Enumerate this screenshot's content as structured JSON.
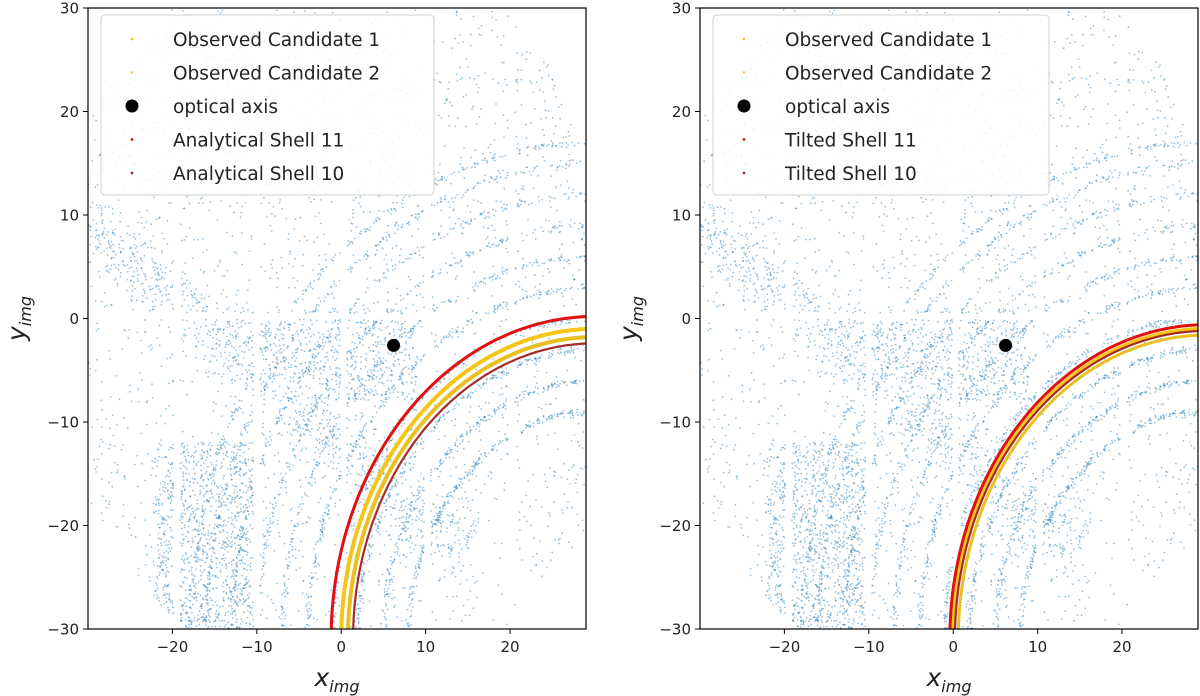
{
  "chart_data": [
    {
      "type": "scatter",
      "panel": "left",
      "xlabel": "x",
      "xlabel_sub": "img",
      "ylabel": "y",
      "ylabel_sub": "img",
      "xlim": [
        -30,
        29
      ],
      "ylim": [
        -30,
        30
      ],
      "xticks": [
        -20,
        -10,
        0,
        10,
        20
      ],
      "yticks": [
        -30,
        -20,
        -10,
        0,
        10,
        20,
        30
      ],
      "xtick_labels": [
        "−20",
        "−10",
        "0",
        "10",
        "20"
      ],
      "ytick_labels": [
        "−30",
        "−20",
        "−10",
        "0",
        "10",
        "20",
        "30"
      ],
      "legend_position": "upper-left",
      "legend": [
        {
          "label": "Observed Candidate 1",
          "color": "#f5c518",
          "marker": "small-point"
        },
        {
          "label": "Observed Candidate 2",
          "color": "#f0d060",
          "marker": "small-point"
        },
        {
          "label": "optical axis",
          "color": "#000000",
          "marker": "large-dot"
        },
        {
          "label": "Analytical Shell 11",
          "color": "#e01010",
          "marker": "small-point"
        },
        {
          "label": "Analytical Shell 10",
          "color": "#a52a2a",
          "marker": "small-point"
        }
      ],
      "optical_axis": {
        "x": 6.2,
        "y": -2.6
      },
      "series": [
        {
          "name": "Observed Candidate 1",
          "kind": "arc",
          "center": [
            30,
            -31
          ],
          "radius": 30.0,
          "color": "#f5c518",
          "width": 4
        },
        {
          "name": "Observed Candidate 2",
          "kind": "arc",
          "center": [
            30,
            -31
          ],
          "radius": 29.2,
          "color": "#e8c020",
          "width": 4
        },
        {
          "name": "Analytical Shell 11",
          "kind": "arc",
          "center": [
            30,
            -31
          ],
          "radius": 31.2,
          "color": "#e01010",
          "width": 3
        },
        {
          "name": "Analytical Shell 10",
          "kind": "arc",
          "center": [
            30,
            -31
          ],
          "radius": 28.6,
          "color": "#a52a2a",
          "width": 2.2
        }
      ]
    },
    {
      "type": "scatter",
      "panel": "right",
      "xlabel": "x",
      "xlabel_sub": "img",
      "ylabel": "y",
      "ylabel_sub": "img",
      "xlim": [
        -30,
        29
      ],
      "ylim": [
        -30,
        30
      ],
      "xticks": [
        -20,
        -10,
        0,
        10,
        20
      ],
      "yticks": [
        -30,
        -20,
        -10,
        0,
        10,
        20,
        30
      ],
      "xtick_labels": [
        "−20",
        "−10",
        "0",
        "10",
        "20"
      ],
      "ytick_labels": [
        "−30",
        "−20",
        "−10",
        "0",
        "10",
        "20",
        "30"
      ],
      "legend_position": "upper-left",
      "legend": [
        {
          "label": "Observed Candidate 1",
          "color": "#f5c518",
          "marker": "small-point"
        },
        {
          "label": "Observed Candidate 2",
          "color": "#f0d060",
          "marker": "small-point"
        },
        {
          "label": "optical axis",
          "color": "#000000",
          "marker": "large-dot"
        },
        {
          "label": "Tilted Shell 11",
          "color": "#e01010",
          "marker": "small-point"
        },
        {
          "label": "Tilted Shell 10",
          "color": "#a52a2a",
          "marker": "small-point"
        }
      ],
      "optical_axis": {
        "x": 6.2,
        "y": -2.6
      },
      "series": [
        {
          "name": "Observed Candidate 1",
          "kind": "arc",
          "center": [
            30,
            -31
          ],
          "radius": 30.0,
          "color": "#f5c518",
          "width": 4
        },
        {
          "name": "Observed Candidate 2",
          "kind": "arc",
          "center": [
            30,
            -31
          ],
          "radius": 29.4,
          "color": "#e8c020",
          "width": 3
        },
        {
          "name": "Tilted Shell 11",
          "kind": "arc",
          "center": [
            30,
            -31
          ],
          "radius": 30.4,
          "color": "#e01010",
          "width": 3
        },
        {
          "name": "Tilted Shell 10",
          "kind": "arc",
          "center": [
            30,
            -31
          ],
          "radius": 29.8,
          "color": "#a52a2a",
          "width": 2.2
        }
      ]
    }
  ],
  "colors": {
    "background_points": "#1f77b4"
  }
}
